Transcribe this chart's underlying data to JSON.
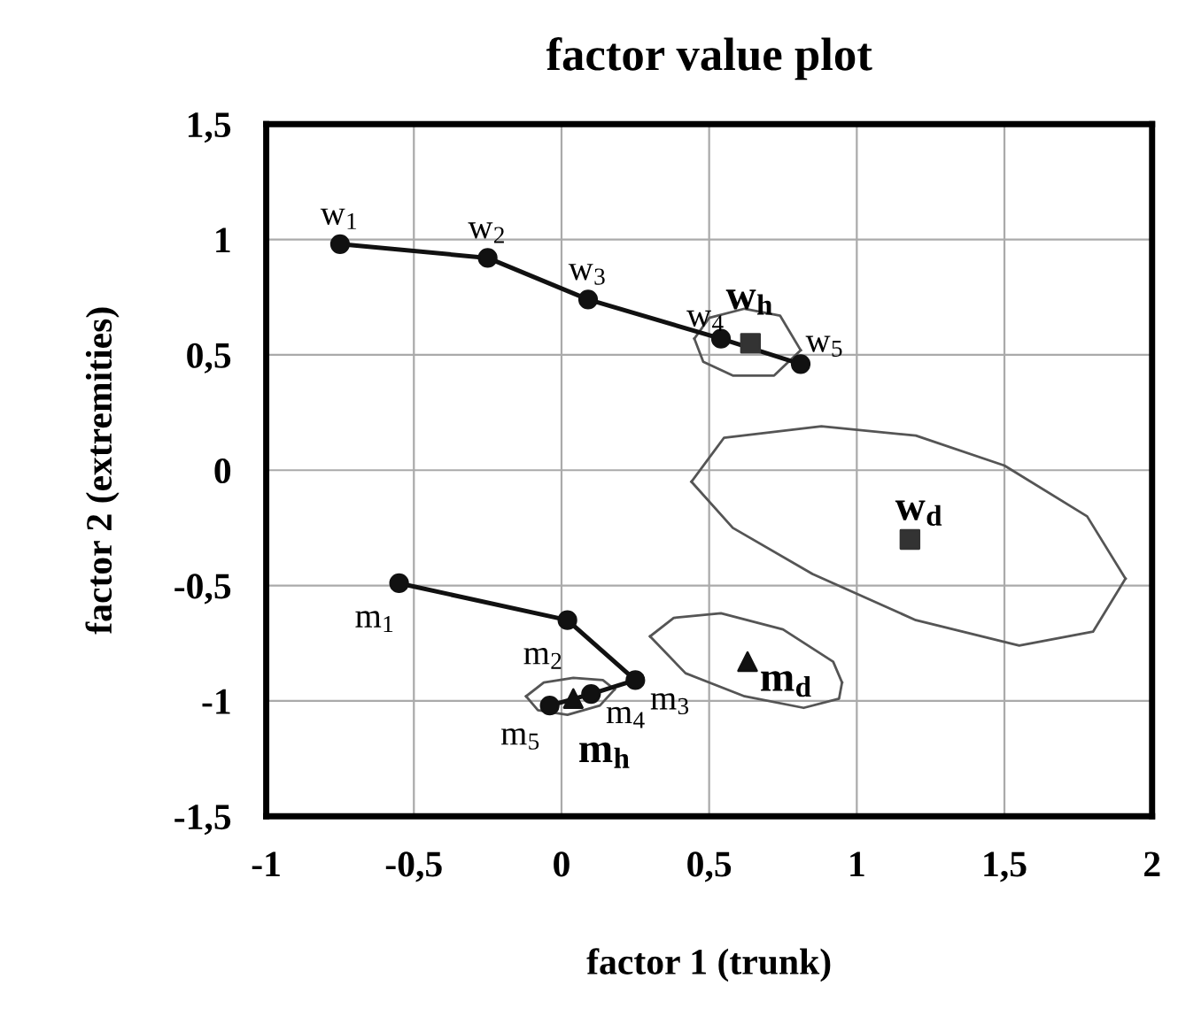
{
  "chart_data": {
    "type": "line",
    "title": "factor value plot",
    "xlabel": "factor 1 (trunk)",
    "ylabel": "factor 2 (extremities)",
    "xlim": [
      -1,
      2
    ],
    "ylim": [
      -1.5,
      1.5
    ],
    "xticks": [
      -1,
      {
        "value": -0.5,
        "label": "-0,5"
      },
      0,
      {
        "value": 0.5,
        "label": "0,5"
      },
      1,
      {
        "value": 1.5,
        "label": "1,5"
      },
      2
    ],
    "yticks": [
      {
        "value": -1.5,
        "label": "-1,5"
      },
      -1,
      {
        "value": -0.5,
        "label": "-0,5"
      },
      0,
      {
        "value": 0.5,
        "label": "0,5"
      },
      1,
      {
        "value": 1.5,
        "label": "1,5"
      }
    ],
    "grid": true,
    "legend": false,
    "series": [
      {
        "marker": "circle",
        "color": "#111111",
        "x": [
          -0.75,
          -0.25,
          0.09,
          0.54,
          0.81
        ],
        "values": [
          0.98,
          0.92,
          0.74,
          0.57,
          0.46
        ]
      },
      {
        "marker": "circle",
        "color": "#111111",
        "x": [
          -0.55,
          0.02,
          0.25,
          0.1,
          -0.04
        ],
        "values": [
          -0.49,
          -0.65,
          -0.91,
          -0.97,
          -1.02
        ]
      },
      {
        "type": "scatter",
        "marker": "square",
        "color": "#333333",
        "x": [
          0.64,
          1.18
        ],
        "values": [
          0.55,
          -0.3
        ]
      },
      {
        "type": "scatter",
        "marker": "triangle",
        "color": "#111111",
        "x": [
          0.04,
          0.63
        ],
        "values": [
          -0.99,
          -0.83
        ]
      },
      {
        "marker": "none",
        "color": "#555555",
        "x": [
          0.45,
          0.5,
          0.62,
          0.74,
          0.81
        ],
        "values": [
          0.57,
          0.66,
          0.7,
          0.67,
          0.52
        ]
      },
      {
        "marker": "none",
        "color": "#555555",
        "x": [
          0.45,
          0.48,
          0.58,
          0.72,
          0.81
        ],
        "values": [
          0.57,
          0.47,
          0.41,
          0.41,
          0.52
        ]
      },
      {
        "marker": "none",
        "color": "#555555",
        "x": [
          0.44,
          0.55,
          0.88,
          1.2,
          1.5,
          1.78,
          1.91
        ],
        "values": [
          -0.05,
          0.14,
          0.19,
          0.15,
          0.02,
          -0.2,
          -0.47
        ]
      },
      {
        "marker": "none",
        "color": "#555555",
        "x": [
          0.44,
          0.58,
          0.85,
          1.2,
          1.55,
          1.8,
          1.91
        ],
        "values": [
          -0.05,
          -0.25,
          -0.45,
          -0.65,
          -0.76,
          -0.7,
          -0.47
        ]
      },
      {
        "marker": "none",
        "color": "#555555",
        "x": [
          0.3,
          0.38,
          0.54,
          0.75,
          0.92,
          0.95
        ],
        "values": [
          -0.72,
          -0.64,
          -0.62,
          -0.69,
          -0.83,
          -0.92
        ]
      },
      {
        "marker": "none",
        "color": "#555555",
        "x": [
          0.3,
          0.42,
          0.62,
          0.82,
          0.94,
          0.95
        ],
        "values": [
          -0.72,
          -0.88,
          -0.98,
          -1.03,
          -0.99,
          -0.92
        ]
      },
      {
        "marker": "none",
        "color": "#555555",
        "x": [
          -0.12,
          -0.06,
          0.04,
          0.14,
          0.18
        ],
        "values": [
          -0.98,
          -0.92,
          -0.9,
          -0.91,
          -0.95
        ]
      },
      {
        "marker": "none",
        "color": "#555555",
        "x": [
          -0.12,
          -0.08,
          0.02,
          0.13,
          0.18
        ],
        "values": [
          -0.98,
          -1.04,
          -1.06,
          -1.02,
          -0.95
        ]
      }
    ],
    "annotations": [
      {
        "text": "w$_{1}$",
        "x": -0.75,
        "y": 0.98
      },
      {
        "text": "w$_{2}$",
        "x": -0.25,
        "y": 0.92
      },
      {
        "text": "w$_{3}$",
        "x": 0.09,
        "y": 0.74
      },
      {
        "text": "w$_{4}$",
        "x": 0.54,
        "y": 0.57
      },
      {
        "text": "w$_{5}$",
        "x": 0.81,
        "y": 0.46
      },
      {
        "text": "w$_{h}$",
        "x": 0.64,
        "y": 0.55
      },
      {
        "text": "w$_{d}$",
        "x": 1.18,
        "y": -0.3
      },
      {
        "text": "m$_{1}$",
        "x": -0.55,
        "y": -0.49
      },
      {
        "text": "m$_{2}$",
        "x": 0.02,
        "y": -0.65
      },
      {
        "text": "m$_{3}$",
        "x": 0.25,
        "y": -0.91
      },
      {
        "text": "m$_{4}$",
        "x": 0.1,
        "y": -0.97
      },
      {
        "text": "m$_{5}$",
        "x": -0.04,
        "y": -1.02
      },
      {
        "text": "m$_{h}$",
        "x": 0.04,
        "y": -0.99
      },
      {
        "text": "m$_{d}$",
        "x": 0.63,
        "y": -0.83
      }
    ]
  }
}
